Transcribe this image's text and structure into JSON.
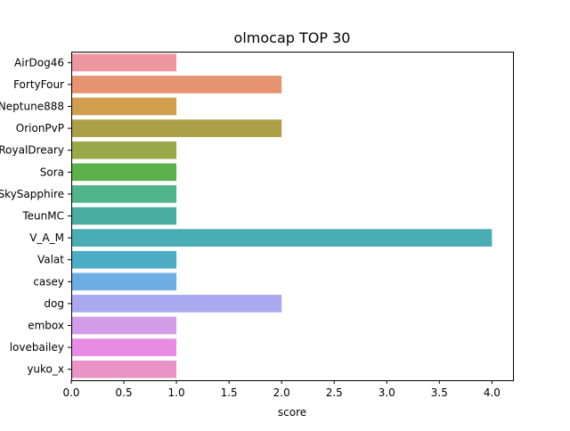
{
  "chart_data": {
    "type": "bar",
    "orientation": "horizontal",
    "title": "olmocap TOP 30",
    "xlabel": "score",
    "ylabel": "",
    "xlim": [
      0,
      4.2
    ],
    "xticks": [
      0.0,
      0.5,
      1.0,
      1.5,
      2.0,
      2.5,
      3.0,
      3.5,
      4.0
    ],
    "xtick_labels": [
      "0.0",
      "0.5",
      "1.0",
      "1.5",
      "2.0",
      "2.5",
      "3.0",
      "3.5",
      "4.0"
    ],
    "grid": false,
    "legend": "none",
    "categories": [
      "AirDog46",
      "FortyFour",
      "Neptune888",
      "OrionPvP",
      "RoyalDreary",
      "Sora",
      "SkySapphire",
      "TeunMC",
      "V_A_M",
      "Valat",
      "casey",
      "dog",
      "embox",
      "lovebailey",
      "yuko_x"
    ],
    "values": [
      1,
      2,
      1,
      2,
      1,
      1,
      1,
      1,
      4,
      1,
      1,
      2,
      1,
      1,
      1
    ],
    "colors": [
      "#ee96a0",
      "#e6936f",
      "#d19e4e",
      "#ad9f47",
      "#99a849",
      "#5db14c",
      "#4fb48c",
      "#49aea1",
      "#4aadb4",
      "#4cacc6",
      "#6caee3",
      "#aaa9ef",
      "#d39ce9",
      "#e88be5",
      "#e993c7"
    ]
  }
}
